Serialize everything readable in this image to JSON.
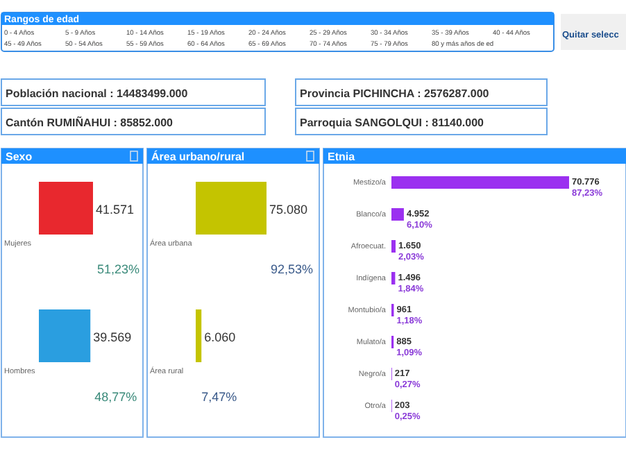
{
  "chart_data": [
    {
      "type": "other",
      "title": "Rangos de edad",
      "annotations": [
        "0 - 4 Años",
        "5 - 9 Años",
        "10 - 14 Años",
        "15 - 19 Años",
        "20 - 24 Años",
        "25 - 29 Años",
        "30 - 34 Años",
        "35 - 39 Años",
        "40 - 44 Años",
        "45 - 49 Años",
        "50 - 54 Años",
        "55 - 59 Años",
        "60 - 64 Años",
        "65 - 69 Años",
        "70 - 74 Años",
        "75 - 79 Años",
        "80 y más años de ed",
        "Quitar selecc",
        "Población nacional :  14483499.000",
        "Provincia PICHINCHA : 2576287.000",
        "Cantón RUMIÑAHUI : 85852.000",
        "Parroquia SANGOLQUI : 81140.000"
      ]
    },
    {
      "type": "bar",
      "title": "Sexo",
      "orientation": "horizontal",
      "categories": [
        "Mujeres",
        "Hombres"
      ],
      "values": [
        41571,
        39569
      ],
      "colors": [
        "#e8282e",
        "#2a9ee0"
      ],
      "value_labels": [
        "41.571",
        "39.569"
      ],
      "annotations": [
        "51,23%",
        "48,77%"
      ]
    },
    {
      "type": "bar",
      "title": "Área urbano/rural",
      "orientation": "horizontal",
      "categories": [
        "Área urbana",
        "Área rural"
      ],
      "values": [
        75080,
        6060
      ],
      "colors": [
        "#c4c400",
        "#c4c400"
      ],
      "value_labels": [
        "75.080",
        "6.060"
      ],
      "annotations": [
        "92,53%",
        "7,47%"
      ]
    },
    {
      "type": "bar",
      "title": "Etnia",
      "orientation": "horizontal",
      "categories": [
        "Mestizo/a",
        "Blanco/a",
        "Afroecuat.",
        "Indígena",
        "Montubio/a",
        "Mulato/a",
        "Negro/a",
        "Otro/a"
      ],
      "values": [
        70776,
        4952,
        1650,
        1496,
        961,
        885,
        217,
        203
      ],
      "colors": [
        "#9b30f0",
        "#9b30f0",
        "#9b30f0",
        "#9b30f0",
        "#9b30f0",
        "#9b30f0",
        "#9b30f0",
        "#9b30f0"
      ],
      "value_labels": [
        "70.776",
        "4.952",
        "1.650",
        "1.496",
        "961",
        "885",
        "217",
        "203"
      ],
      "annotations": [
        "87,23%",
        "6,10%",
        "2,03%",
        "1,84%",
        "1,18%",
        "1,09%",
        "0,27%",
        "0,25%"
      ]
    }
  ]
}
